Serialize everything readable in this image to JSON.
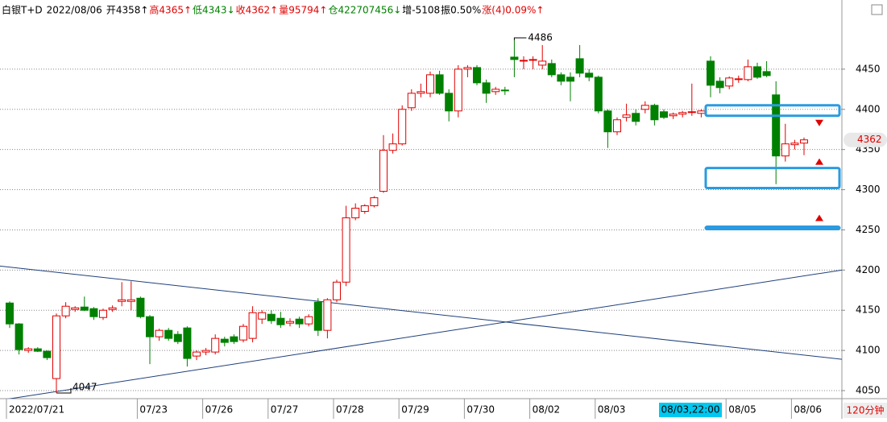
{
  "chart_data": {
    "type": "candlestick",
    "header": [
      {
        "text": "白银T+D",
        "color": "#000000"
      },
      {
        "text": "2022/08/06",
        "color": "#000000"
      },
      {
        "text": "开4358↑",
        "color": "#000000"
      },
      {
        "text": "高4365↑",
        "color": "#e00000"
      },
      {
        "text": "低4343↓",
        "color": "#008000"
      },
      {
        "text": "收4362↑",
        "color": "#e00000"
      },
      {
        "text": "量95794↑",
        "color": "#e00000"
      },
      {
        "text": "仓422707456↓",
        "color": "#008000"
      },
      {
        "text": "增-5108",
        "color": "#000000"
      },
      {
        "text": "振0.50%",
        "color": "#000000"
      },
      {
        "text": "涨(4)0.09%↑",
        "color": "#e00000"
      }
    ],
    "period": "120分钟",
    "crosshair_label": "08/03,22:00",
    "up_color": "#e00000",
    "down_color": "#008000",
    "categories": [
      "2022/07/21",
      null,
      null,
      null,
      null,
      null,
      null,
      null,
      null,
      null,
      null,
      null,
      null,
      null,
      "07/23",
      null,
      null,
      null,
      null,
      null,
      null,
      "07/26",
      null,
      null,
      null,
      null,
      null,
      null,
      "07/27",
      null,
      null,
      null,
      null,
      null,
      null,
      "07/28",
      null,
      null,
      null,
      null,
      null,
      null,
      "07/29",
      null,
      null,
      null,
      null,
      null,
      null,
      "07/30",
      null,
      null,
      null,
      null,
      null,
      null,
      "08/02",
      null,
      null,
      null,
      null,
      null,
      null,
      "08/03",
      null,
      null,
      null,
      null,
      null,
      null,
      null,
      null,
      null,
      null,
      null,
      null,
      null,
      "08/05",
      null,
      null,
      null,
      null,
      null,
      null,
      "08/06",
      null
    ],
    "open": [
      4159,
      4133,
      4100,
      4102,
      4099,
      4065,
      4143,
      4151,
      4154,
      4152,
      4141,
      4151,
      4161,
      4161,
      4165,
      4142,
      4117,
      4125,
      4120,
      4128,
      4093,
      4098,
      4098,
      4114,
      4117,
      4113,
      4115,
      4139,
      4145,
      4140,
      4134,
      4139,
      4133,
      4160,
      4125,
      4163,
      4185,
      4265,
      4273,
      4280,
      4298,
      4349,
      4357,
      4402,
      4420,
      4420,
      4443,
      4420,
      4398,
      4450,
      4452,
      4433,
      4422,
      4424,
      4465,
      4460,
      4462,
      4455,
      4457,
      4443,
      4440,
      4463,
      4445,
      4440,
      4398,
      4372,
      4390,
      4395,
      4400,
      4405,
      4397,
      4392,
      4394,
      4396,
      4395,
      4460,
      4435,
      4429,
      4438,
      4437,
      4453,
      4447,
      4418,
      4342,
      4356,
      4358
    ],
    "high": [
      4161,
      4134,
      4104,
      4104,
      4100,
      4146,
      4160,
      4155,
      4167,
      4154,
      4152,
      4156,
      4185,
      4186,
      4167,
      4144,
      4127,
      4128,
      4124,
      4130,
      4100,
      4103,
      4120,
      4117,
      4120,
      4133,
      4155,
      4150,
      4150,
      4148,
      4140,
      4142,
      4145,
      4165,
      4165,
      4188,
      4280,
      4283,
      4282,
      4292,
      4368,
      4370,
      4405,
      4425,
      4432,
      4447,
      4448,
      4425,
      4455,
      4455,
      4455,
      4437,
      4428,
      4428,
      4486,
      4466,
      4466,
      4480,
      4462,
      4446,
      4446,
      4480,
      4450,
      4442,
      4400,
      4390,
      4407,
      4400,
      4410,
      4407,
      4400,
      4396,
      4398,
      4432,
      4400,
      4466,
      4440,
      4441,
      4442,
      4462,
      4458,
      4460,
      4435,
      4382,
      4362,
      4365
    ],
    "low": [
      4128,
      4095,
      4097,
      4098,
      4088,
      4047,
      4140,
      4148,
      4149,
      4138,
      4138,
      4148,
      4155,
      4150,
      4140,
      4083,
      4112,
      4112,
      4108,
      4080,
      4088,
      4094,
      4095,
      4105,
      4108,
      4110,
      4110,
      4133,
      4133,
      4128,
      4130,
      4128,
      4130,
      4118,
      4115,
      4160,
      4180,
      4262,
      4270,
      4278,
      4296,
      4345,
      4355,
      4398,
      4415,
      4415,
      4418,
      4385,
      4390,
      4440,
      4430,
      4408,
      4418,
      4418,
      4440,
      4450,
      4450,
      4450,
      4440,
      4430,
      4410,
      4440,
      4435,
      4395,
      4352,
      4368,
      4385,
      4380,
      4395,
      4380,
      4388,
      4388,
      4390,
      4392,
      4390,
      4415,
      4420,
      4425,
      4433,
      4435,
      4438,
      4440,
      4307,
      4335,
      4350,
      4343
    ],
    "close": [
      4133,
      4101,
      4102,
      4099,
      4091,
      4143,
      4155,
      4153,
      4150,
      4142,
      4150,
      4153,
      4163,
      4163,
      4142,
      4117,
      4125,
      4115,
      4111,
      4090,
      4098,
      4100,
      4115,
      4110,
      4111,
      4130,
      4147,
      4147,
      4137,
      4132,
      4136,
      4133,
      4142,
      4125,
      4163,
      4185,
      4265,
      4277,
      4280,
      4290,
      4349,
      4357,
      4400,
      4420,
      4422,
      4443,
      4420,
      4398,
      4450,
      4452,
      4433,
      4420,
      4425,
      4423,
      4462,
      4461,
      4462,
      4460,
      4443,
      4435,
      4435,
      4445,
      4440,
      4398,
      4372,
      4387,
      4393,
      4385,
      4405,
      4387,
      4390,
      4394,
      4396,
      4397,
      4398,
      4430,
      4427,
      4439,
      4438,
      4453,
      4440,
      4442,
      4342,
      4357,
      4358,
      4362
    ],
    "ylim": [
      4040,
      4508
    ],
    "yticks": [
      4050,
      4100,
      4150,
      4200,
      4250,
      4300,
      4350,
      4400,
      4450
    ],
    "grid": true,
    "trendlines": [
      {
        "color": "#1f3f7a",
        "values": [
          4205,
          4089
        ]
      },
      {
        "color": "#1f3f7a",
        "values": [
          4038,
          4200
        ]
      }
    ],
    "zones": [
      {
        "color": "#2a9be0",
        "top": 4405,
        "bottom": 4392
      },
      {
        "color": "#2a9be0",
        "top": 4327,
        "bottom": 4302
      },
      {
        "color": "#2a9be0",
        "top": 4254,
        "bottom": 4251
      }
    ],
    "markers": [
      {
        "shape": "triangle-down",
        "color": "#e00000",
        "value": 4383
      },
      {
        "shape": "triangle-up",
        "color": "#e00000",
        "value": 4335
      },
      {
        "shape": "triangle-up",
        "color": "#e00000",
        "value": 4265
      }
    ]
  }
}
